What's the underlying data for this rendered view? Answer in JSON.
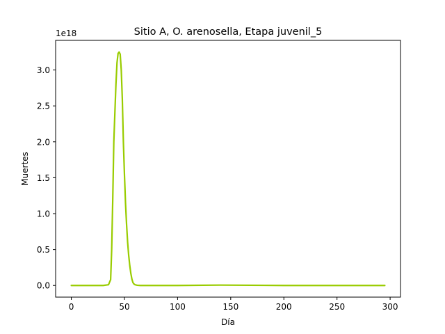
{
  "chart_data": {
    "type": "line",
    "title": "Sitio A, O. arenosella, Etapa juvenil_5",
    "xlabel": "Día",
    "ylabel": "Muertes",
    "y_offset_label": "1e18",
    "y_scale_factor": 1e+18,
    "xlim": [
      -14.75,
      309.75
    ],
    "ylim": [
      -0.1625,
      3.4125
    ],
    "xticks": [
      0,
      50,
      100,
      150,
      200,
      250,
      300
    ],
    "xtick_labels": [
      "0",
      "50",
      "100",
      "150",
      "200",
      "250",
      "300"
    ],
    "yticks": [
      0.0,
      0.5,
      1.0,
      1.5,
      2.0,
      2.5,
      3.0
    ],
    "ytick_labels": [
      "0.0",
      "0.5",
      "1.0",
      "1.5",
      "2.0",
      "2.5",
      "3.0"
    ],
    "grid": false,
    "legend": "none",
    "series": [
      {
        "color": "#99cc00",
        "x": [
          0,
          30,
          35,
          37,
          38,
          39,
          40,
          41,
          42,
          43,
          44,
          45,
          46,
          47,
          48,
          49,
          50,
          51,
          52,
          53,
          54,
          55,
          56,
          57,
          58,
          59,
          60,
          62,
          65,
          70,
          100,
          140,
          200,
          250,
          295
        ],
        "y": [
          0.0,
          0.0,
          0.01,
          0.08,
          0.5,
          1.2,
          2.0,
          2.4,
          2.8,
          3.1,
          3.23,
          3.25,
          3.22,
          3.0,
          2.6,
          2.0,
          1.55,
          1.15,
          0.85,
          0.6,
          0.42,
          0.28,
          0.17,
          0.09,
          0.04,
          0.02,
          0.01,
          0.003,
          0.0,
          0.0,
          0.0,
          0.005,
          0.0,
          0.0,
          0.0
        ]
      }
    ]
  }
}
